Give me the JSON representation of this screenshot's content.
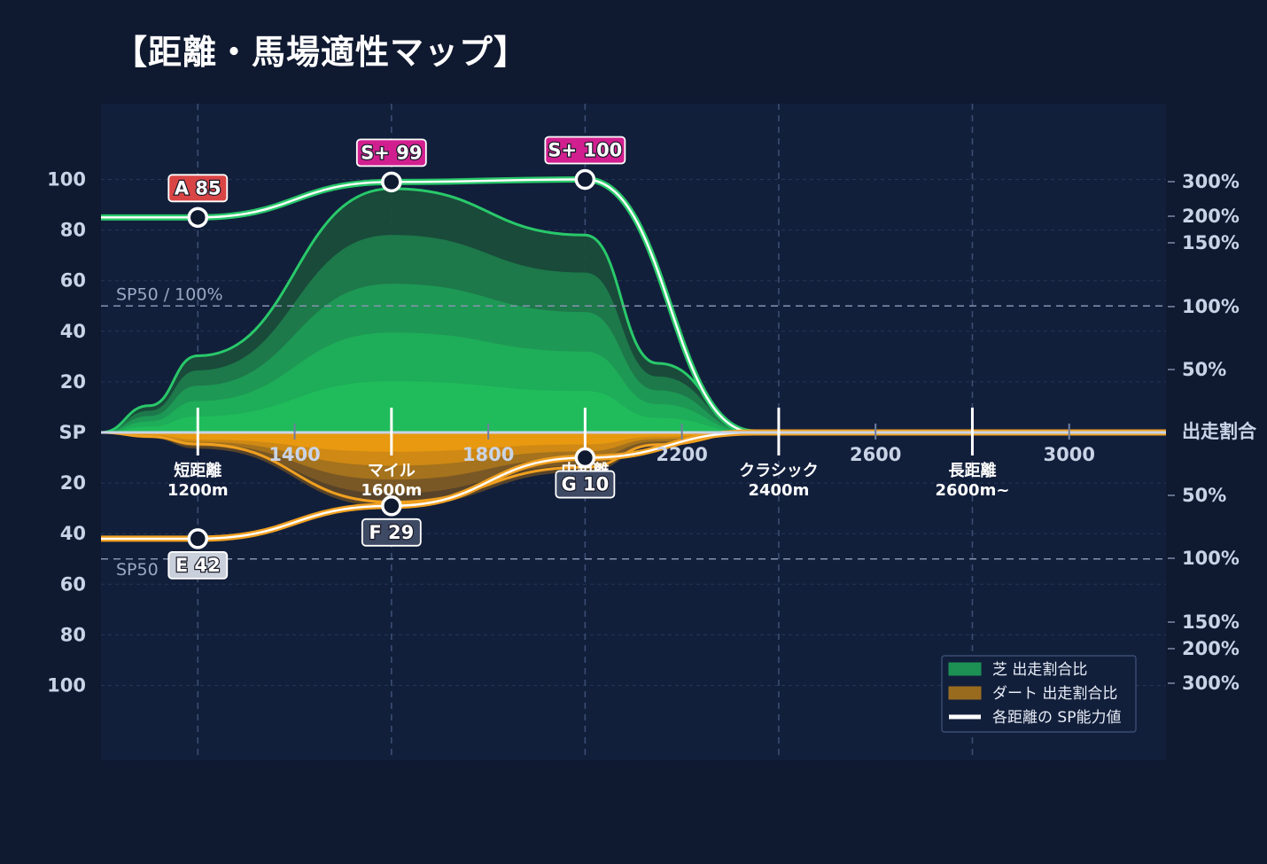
{
  "title": "【距離・馬場適性マップ】",
  "chart_data": {
    "type": "area",
    "x_range": [
      1000,
      3200
    ],
    "x_ticks": [
      1400,
      1800,
      2200,
      2600,
      3000
    ],
    "sp_ylim": [
      0,
      100
    ],
    "y_ticks_top": [
      "100",
      "80",
      "60",
      "40",
      "20"
    ],
    "y_ticks_bottom": [
      "20",
      "40",
      "60",
      "80",
      "100"
    ],
    "y_center_label": "SP",
    "right_ticks_top": [
      "300%",
      "200%",
      "150%",
      "100%",
      "50%"
    ],
    "right_ticks_bottom": [
      "50%",
      "100%",
      "150%",
      "200%",
      "300%"
    ],
    "right_center_label": "出走割合",
    "reference_top": "SP50 / 100%",
    "reference_bottom": "SP50",
    "categories": [
      {
        "name": "短距離",
        "dist": "1200m",
        "x": 1200
      },
      {
        "name": "マイル",
        "dist": "1600m",
        "x": 1600
      },
      {
        "name": "中距離",
        "dist": "2000m",
        "x": 2000
      },
      {
        "name": "クラシック",
        "dist": "2400m",
        "x": 2400
      },
      {
        "name": "長距離",
        "dist": "2600m~",
        "x": 2800
      }
    ],
    "turf_sp": [
      {
        "x": 1200,
        "value": 85,
        "label": "A 85",
        "color": "#d94545"
      },
      {
        "x": 1600,
        "value": 99,
        "label": "S+ 99",
        "color": "#d21f8f"
      },
      {
        "x": 2000,
        "value": 100,
        "label": "S+ 100",
        "color": "#d21f8f"
      }
    ],
    "dirt_sp": [
      {
        "x": 1200,
        "value": 42,
        "label": "E 42",
        "color": "#c9d0dc"
      },
      {
        "x": 1600,
        "value": 29,
        "label": "F 29",
        "color": "#3e4a63"
      },
      {
        "x": 2000,
        "value": 10,
        "label": "G 10",
        "color": "#3e4a63"
      }
    ],
    "turf_ratio_pct": [
      {
        "x": 1200,
        "value": 33
      },
      {
        "x": 1600,
        "value": 105
      },
      {
        "x": 2000,
        "value": 85
      }
    ],
    "dirt_ratio_pct": [
      {
        "x": 1200,
        "value": 5
      },
      {
        "x": 1600,
        "value": 30
      },
      {
        "x": 2000,
        "value": 15
      }
    ],
    "legend": [
      {
        "label": "芝 出走割合比",
        "color": "#1f9e57"
      },
      {
        "label": "ダート 出走割合比",
        "color": "#a8741c"
      },
      {
        "label": "各距離の SP能力値",
        "color": "#ffffff"
      }
    ],
    "legend_position": "bottom-right",
    "grid": true
  }
}
